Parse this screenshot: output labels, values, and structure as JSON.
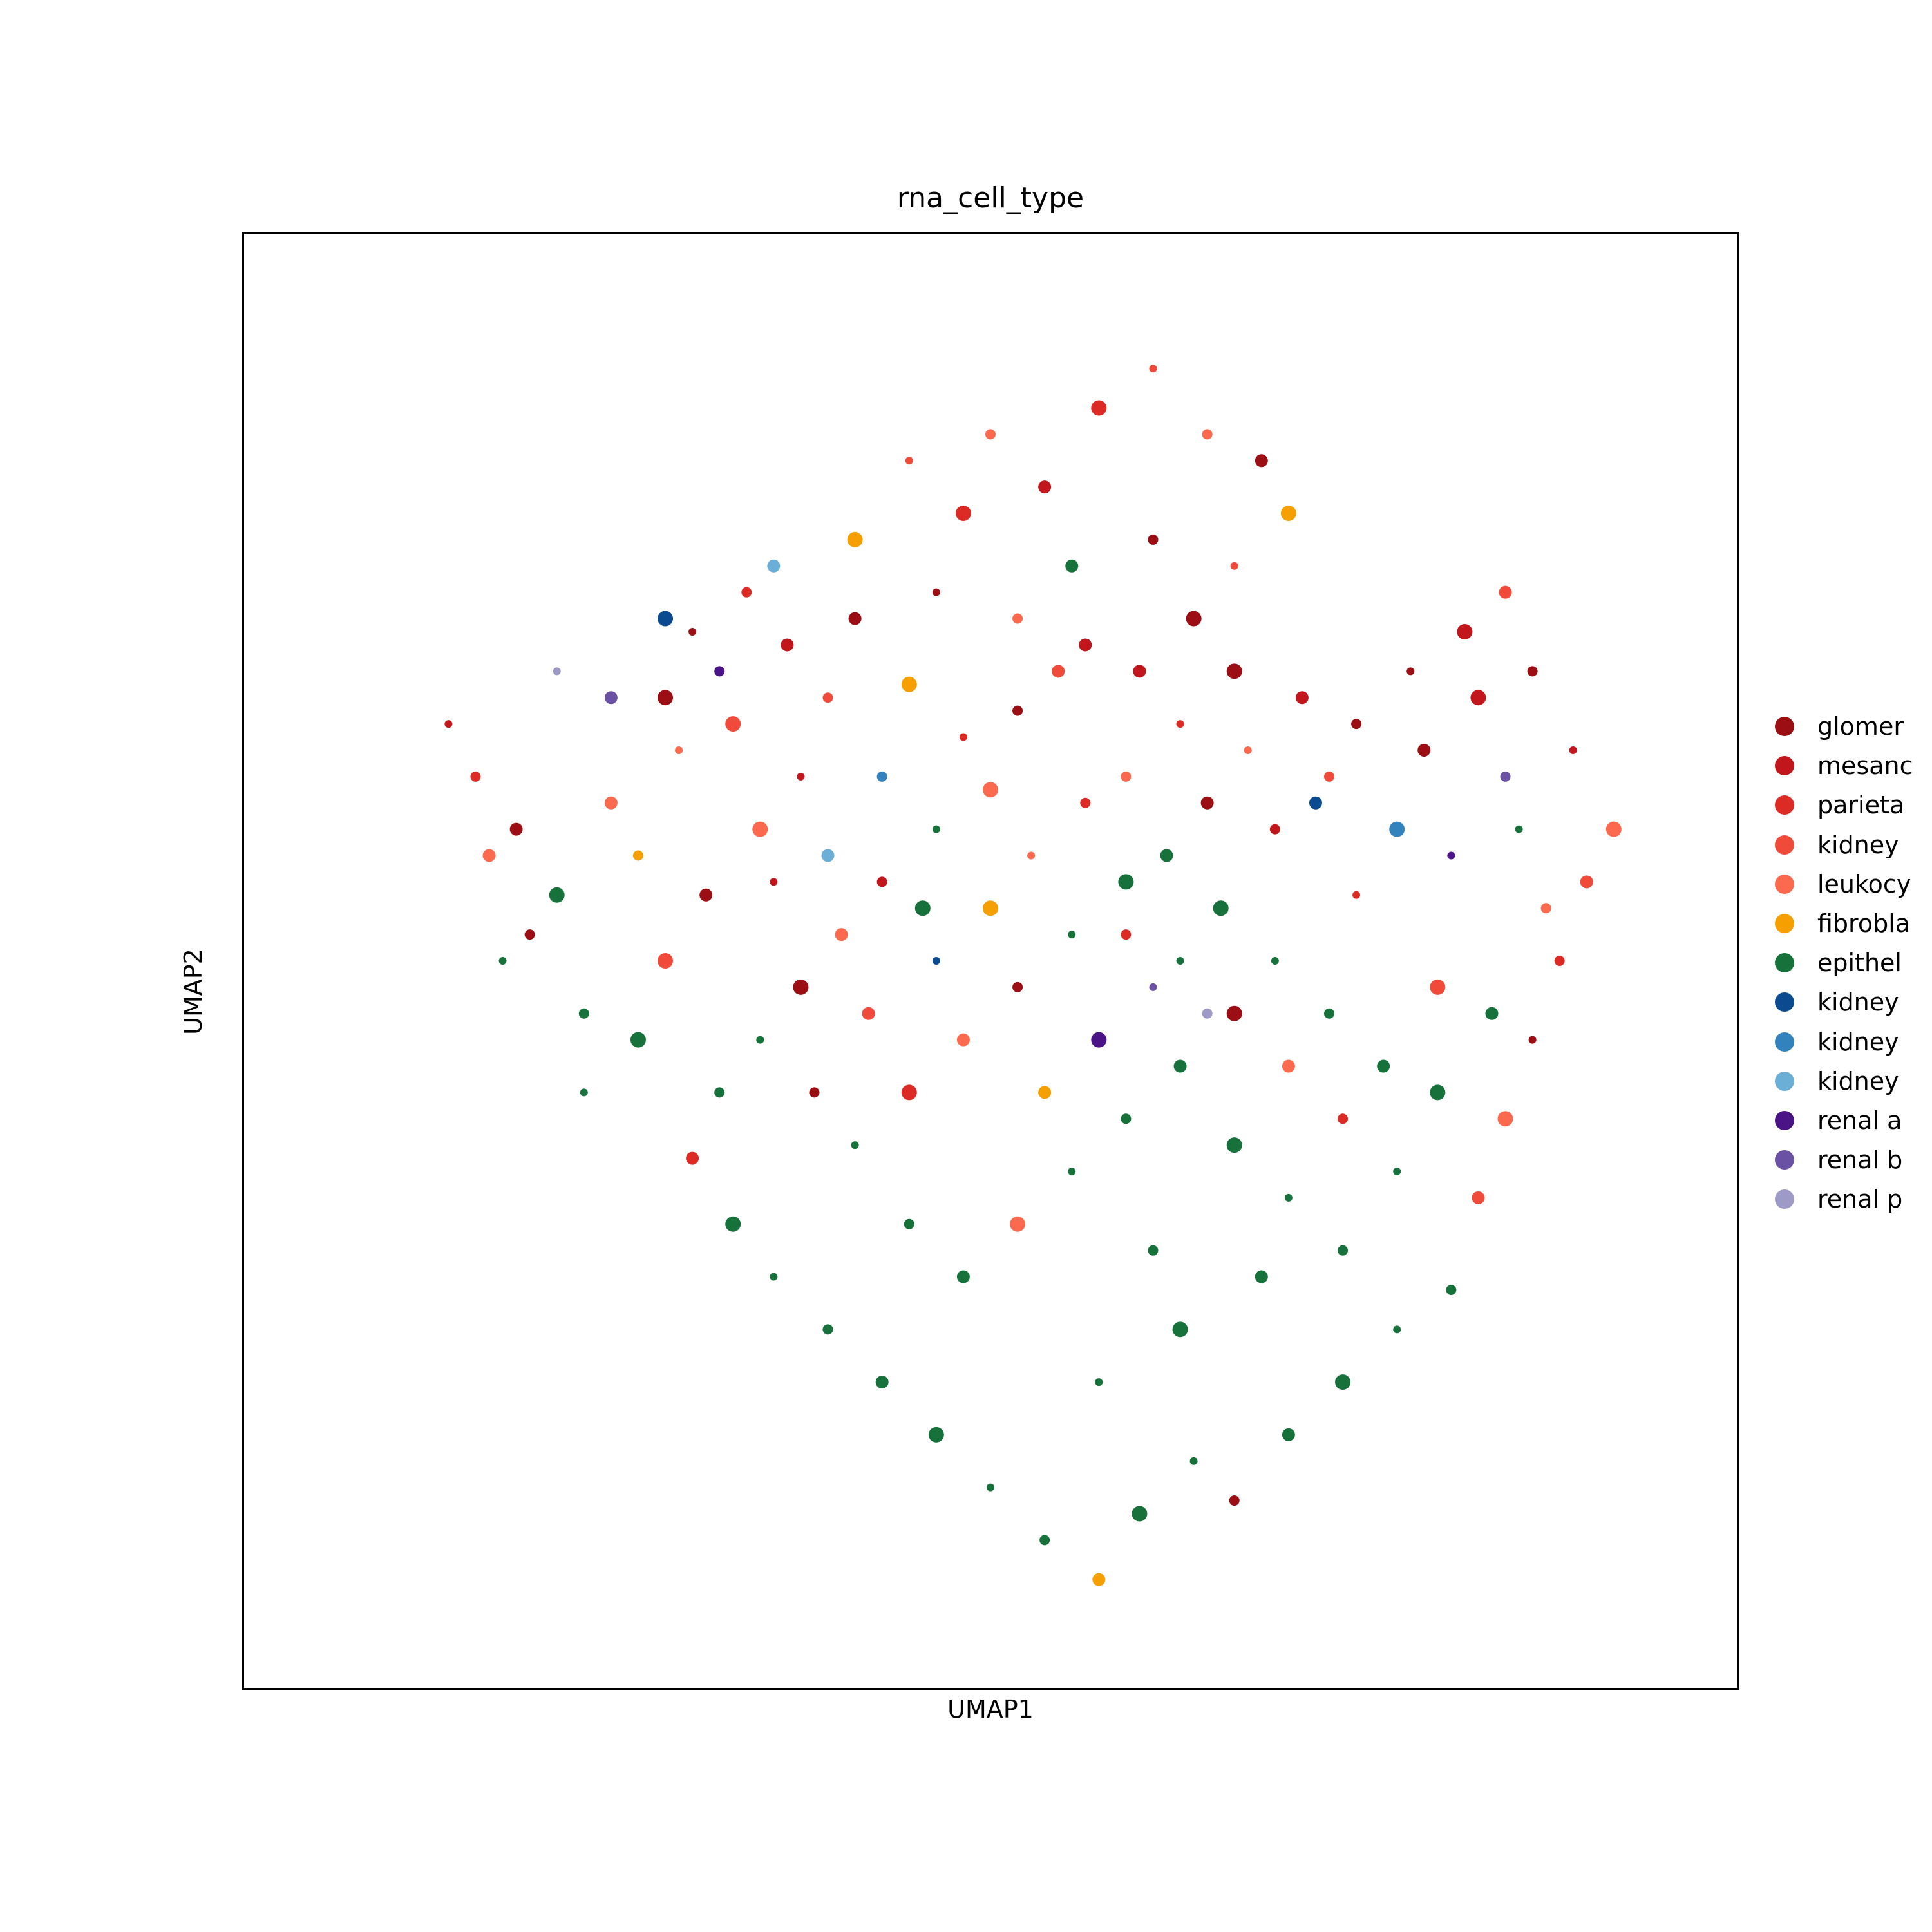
{
  "chart_data": {
    "type": "scatter",
    "title": "rna_cell_type",
    "xlabel": "UMAP1",
    "ylabel": "UMAP2",
    "xlim": [
      0,
      100
    ],
    "ylim": [
      0,
      100
    ],
    "grid": false,
    "legend_placement": "right",
    "categories": [
      {
        "label": "glomer",
        "color": "#9b0e13"
      },
      {
        "label": "mesanc",
        "color": "#c1161c"
      },
      {
        "label": "parieta",
        "color": "#dc2a24"
      },
      {
        "label": "kidney",
        "color": "#ef4a3a"
      },
      {
        "label": "leukocy",
        "color": "#fb6a4e"
      },
      {
        "label": "fibrobla",
        "color": "#f5a000"
      },
      {
        "label": "epithel",
        "color": "#16723a"
      },
      {
        "label": "kidney",
        "color": "#0b4a8f"
      },
      {
        "label": "kidney",
        "color": "#3182bd"
      },
      {
        "label": "kidney",
        "color": "#6baed6"
      },
      {
        "label": "renal a",
        "color": "#4a1486"
      },
      {
        "label": "renal b",
        "color": "#6a51a3"
      },
      {
        "label": "renal p",
        "color": "#9e9ac8"
      }
    ],
    "points": [
      [
        10,
        68,
        1
      ],
      [
        12,
        64,
        2
      ],
      [
        15,
        60,
        0
      ],
      [
        18,
        55,
        6
      ],
      [
        14,
        50,
        6
      ],
      [
        20,
        46,
        6
      ],
      [
        22,
        62,
        4
      ],
      [
        26,
        70,
        0
      ],
      [
        28,
        75,
        0
      ],
      [
        32,
        78,
        2
      ],
      [
        35,
        74,
        1
      ],
      [
        31,
        68,
        3
      ],
      [
        27,
        66,
        4
      ],
      [
        24,
        58,
        5
      ],
      [
        29,
        55,
        0
      ],
      [
        33,
        60,
        4
      ],
      [
        36,
        64,
        1
      ],
      [
        38,
        70,
        3
      ],
      [
        40,
        76,
        0
      ],
      [
        44,
        71,
        5
      ],
      [
        48,
        67,
        2
      ],
      [
        52,
        69,
        0
      ],
      [
        55,
        72,
        3
      ],
      [
        50,
        63,
        4
      ],
      [
        46,
        60,
        6
      ],
      [
        42,
        56,
        1
      ],
      [
        39,
        52,
        4
      ],
      [
        36,
        48,
        0
      ],
      [
        33,
        44,
        6
      ],
      [
        30,
        40,
        6
      ],
      [
        28,
        35,
        2
      ],
      [
        31,
        30,
        6
      ],
      [
        34,
        26,
        6
      ],
      [
        38,
        22,
        6
      ],
      [
        42,
        18,
        6
      ],
      [
        46,
        14,
        6
      ],
      [
        50,
        10,
        6
      ],
      [
        54,
        6,
        6
      ],
      [
        58,
        3,
        5
      ],
      [
        61,
        8,
        6
      ],
      [
        65,
        12,
        6
      ],
      [
        68,
        9,
        0
      ],
      [
        72,
        14,
        6
      ],
      [
        76,
        18,
        6
      ],
      [
        80,
        22,
        6
      ],
      [
        84,
        25,
        6
      ],
      [
        86,
        32,
        3
      ],
      [
        88,
        38,
        4
      ],
      [
        90,
        44,
        0
      ],
      [
        92,
        50,
        2
      ],
      [
        94,
        56,
        3
      ],
      [
        96,
        60,
        4
      ],
      [
        93,
        66,
        1
      ],
      [
        90,
        72,
        0
      ],
      [
        88,
        78,
        3
      ],
      [
        85,
        75,
        1
      ],
      [
        81,
        72,
        0
      ],
      [
        77,
        68,
        0
      ],
      [
        73,
        70,
        1
      ],
      [
        68,
        72,
        0
      ],
      [
        64,
        68,
        2
      ],
      [
        60,
        64,
        4
      ],
      [
        63,
        58,
        6
      ],
      [
        67,
        54,
        6
      ],
      [
        71,
        50,
        6
      ],
      [
        75,
        46,
        6
      ],
      [
        79,
        42,
        6
      ],
      [
        83,
        48,
        3
      ],
      [
        77,
        55,
        2
      ],
      [
        71,
        60,
        1
      ],
      [
        66,
        62,
        0
      ],
      [
        60,
        56,
        6
      ],
      [
        56,
        52,
        6
      ],
      [
        52,
        48,
        0
      ],
      [
        48,
        44,
        4
      ],
      [
        44,
        40,
        2
      ],
      [
        40,
        36,
        6
      ],
      [
        44,
        30,
        6
      ],
      [
        48,
        26,
        6
      ],
      [
        52,
        30,
        4
      ],
      [
        56,
        34,
        6
      ],
      [
        60,
        38,
        6
      ],
      [
        64,
        42,
        6
      ],
      [
        68,
        36,
        6
      ],
      [
        72,
        32,
        6
      ],
      [
        76,
        28,
        6
      ],
      [
        70,
        26,
        6
      ],
      [
        64,
        22,
        6
      ],
      [
        58,
        18,
        6
      ],
      [
        62,
        28,
        6
      ],
      [
        54,
        40,
        5
      ],
      [
        50,
        54,
        5
      ],
      [
        46,
        50,
        7
      ],
      [
        42,
        64,
        8
      ],
      [
        38,
        58,
        9
      ],
      [
        58,
        44,
        10
      ],
      [
        62,
        48,
        11
      ],
      [
        66,
        46,
        12
      ],
      [
        74,
        62,
        7
      ],
      [
        80,
        60,
        8
      ],
      [
        84,
        58,
        10
      ],
      [
        88,
        64,
        11
      ],
      [
        22,
        70,
        11
      ],
      [
        26,
        76,
        7
      ],
      [
        18,
        72,
        12
      ],
      [
        30,
        72,
        10
      ],
      [
        34,
        80,
        9
      ],
      [
        40,
        82,
        5
      ],
      [
        44,
        88,
        3
      ],
      [
        50,
        90,
        4
      ],
      [
        54,
        86,
        1
      ],
      [
        58,
        92,
        2
      ],
      [
        62,
        95,
        3
      ],
      [
        66,
        90,
        4
      ],
      [
        70,
        88,
        0
      ],
      [
        72,
        84,
        5
      ],
      [
        68,
        80,
        3
      ],
      [
        62,
        82,
        0
      ],
      [
        56,
        80,
        6
      ],
      [
        48,
        84,
        2
      ],
      [
        46,
        78,
        0
      ],
      [
        52,
        76,
        4
      ],
      [
        57,
        74,
        1
      ],
      [
        24,
        44,
        6
      ],
      [
        20,
        40,
        6
      ],
      [
        16,
        52,
        0
      ],
      [
        13,
        58,
        4
      ],
      [
        26,
        50,
        3
      ],
      [
        34,
        56,
        1
      ],
      [
        37,
        40,
        0
      ],
      [
        41,
        46,
        3
      ],
      [
        45,
        54,
        6
      ],
      [
        53,
        58,
        4
      ],
      [
        57,
        62,
        2
      ],
      [
        61,
        72,
        1
      ],
      [
        65,
        76,
        0
      ],
      [
        69,
        66,
        4
      ],
      [
        75,
        64,
        3
      ],
      [
        82,
        66,
        0
      ],
      [
        86,
        70,
        1
      ],
      [
        89,
        60,
        6
      ],
      [
        91,
        54,
        4
      ],
      [
        87,
        46,
        6
      ],
      [
        83,
        40,
        6
      ],
      [
        80,
        34,
        6
      ],
      [
        76,
        38,
        2
      ],
      [
        72,
        42,
        4
      ],
      [
        68,
        46,
        0
      ],
      [
        64,
        50,
        6
      ],
      [
        60,
        52,
        2
      ]
    ]
  }
}
